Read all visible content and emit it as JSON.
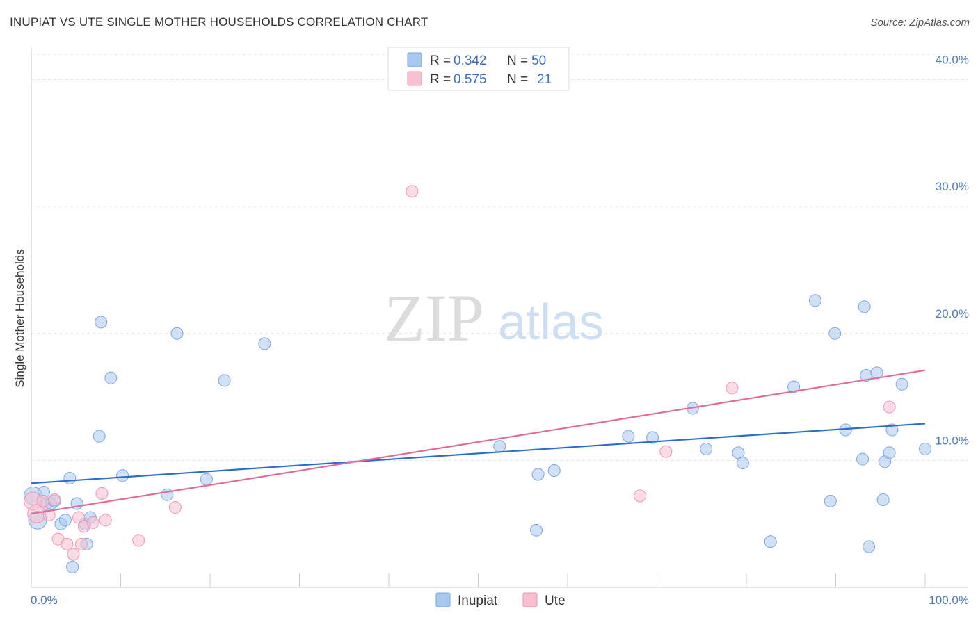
{
  "header": {
    "title": "INUPIAT VS UTE SINGLE MOTHER HOUSEHOLDS CORRELATION CHART",
    "source": "Source: ZipAtlas.com"
  },
  "watermark": {
    "zip": "ZIP",
    "atlas": "atlas"
  },
  "legend": {
    "rows": [
      {
        "r_label": "R = ",
        "r_value": "0.342",
        "n_label": "N = ",
        "n_value": "50",
        "color": "#a9c8f0",
        "stroke": "#7aa6e0"
      },
      {
        "r_label": "R = ",
        "r_value": "0.575",
        "n_label": "N = ",
        "n_value": "21",
        "color": "#f7bfd0",
        "stroke": "#ee94b2"
      }
    ]
  },
  "bottom_legend": [
    {
      "label": "Inupiat",
      "color": "#a9c8f0",
      "stroke": "#7aa6e0"
    },
    {
      "label": "Ute",
      "color": "#f7bfd0",
      "stroke": "#ee94b2"
    }
  ],
  "chart_data": {
    "type": "scatter",
    "title": "INUPIAT VS UTE SINGLE MOTHER HOUSEHOLDS CORRELATION CHART",
    "xlabel": "",
    "ylabel": "Single Mother Households",
    "xlim": [
      0,
      100
    ],
    "ylim": [
      0,
      42
    ],
    "x_ticks_labels": [
      "0.0%",
      "100.0%"
    ],
    "y_ticks": [
      10,
      20,
      30,
      40
    ],
    "y_ticks_labels": [
      "10.0%",
      "20.0%",
      "30.0%",
      "40.0%"
    ],
    "series": [
      {
        "name": "Inupiat",
        "color": "#a9c8f0",
        "stroke": "#7aa6e0",
        "line_color": "#2b6fcc",
        "trend": [
          [
            0,
            8.2
          ],
          [
            100,
            12.9
          ]
        ],
        "points": [
          [
            0.2,
            7.2
          ],
          [
            0.7,
            5.3
          ],
          [
            1.4,
            7.5
          ],
          [
            1.6,
            6.5
          ],
          [
            2.2,
            6.6
          ],
          [
            2.6,
            6.8
          ],
          [
            3.3,
            5.0
          ],
          [
            3.8,
            5.3
          ],
          [
            4.3,
            8.6
          ],
          [
            4.6,
            1.6
          ],
          [
            5.1,
            6.6
          ],
          [
            6.0,
            5.0
          ],
          [
            6.2,
            3.4
          ],
          [
            6.6,
            5.5
          ],
          [
            7.6,
            11.9
          ],
          [
            7.8,
            20.9
          ],
          [
            8.9,
            16.5
          ],
          [
            10.2,
            8.8
          ],
          [
            15.2,
            7.3
          ],
          [
            16.3,
            20.0
          ],
          [
            19.6,
            8.5
          ],
          [
            21.6,
            16.3
          ],
          [
            26.1,
            19.2
          ],
          [
            52.4,
            11.1
          ],
          [
            56.5,
            4.5
          ],
          [
            56.7,
            8.9
          ],
          [
            58.5,
            9.2
          ],
          [
            66.8,
            11.9
          ],
          [
            69.5,
            11.8
          ],
          [
            74.0,
            14.1
          ],
          [
            75.5,
            10.9
          ],
          [
            79.1,
            10.6
          ],
          [
            79.6,
            9.8
          ],
          [
            82.7,
            3.6
          ],
          [
            85.3,
            15.8
          ],
          [
            87.7,
            22.6
          ],
          [
            89.4,
            6.8
          ],
          [
            89.9,
            20.0
          ],
          [
            91.1,
            12.4
          ],
          [
            93.0,
            10.1
          ],
          [
            93.2,
            22.1
          ],
          [
            93.4,
            16.7
          ],
          [
            93.7,
            3.2
          ],
          [
            94.6,
            16.9
          ],
          [
            95.3,
            6.9
          ],
          [
            95.5,
            9.9
          ],
          [
            96.0,
            10.6
          ],
          [
            96.3,
            12.4
          ],
          [
            97.4,
            16.0
          ],
          [
            100.0,
            10.9
          ]
        ]
      },
      {
        "name": "Ute",
        "color": "#f7bfd0",
        "stroke": "#ee94b2",
        "line_color": "#e06c98",
        "trend": [
          [
            0,
            5.8
          ],
          [
            100,
            17.1
          ]
        ],
        "points": [
          [
            0.2,
            6.8
          ],
          [
            0.6,
            5.8
          ],
          [
            1.3,
            6.8
          ],
          [
            2.0,
            5.7
          ],
          [
            2.6,
            6.9
          ],
          [
            3.0,
            3.8
          ],
          [
            4.0,
            3.4
          ],
          [
            4.7,
            2.6
          ],
          [
            5.3,
            5.5
          ],
          [
            5.6,
            3.4
          ],
          [
            5.9,
            4.8
          ],
          [
            6.9,
            5.1
          ],
          [
            7.9,
            7.4
          ],
          [
            8.3,
            5.3
          ],
          [
            12.0,
            3.7
          ],
          [
            16.1,
            6.3
          ],
          [
            42.6,
            31.2
          ],
          [
            68.1,
            7.2
          ],
          [
            71.0,
            10.7
          ],
          [
            78.4,
            15.7
          ],
          [
            96.0,
            14.2
          ]
        ]
      }
    ]
  }
}
